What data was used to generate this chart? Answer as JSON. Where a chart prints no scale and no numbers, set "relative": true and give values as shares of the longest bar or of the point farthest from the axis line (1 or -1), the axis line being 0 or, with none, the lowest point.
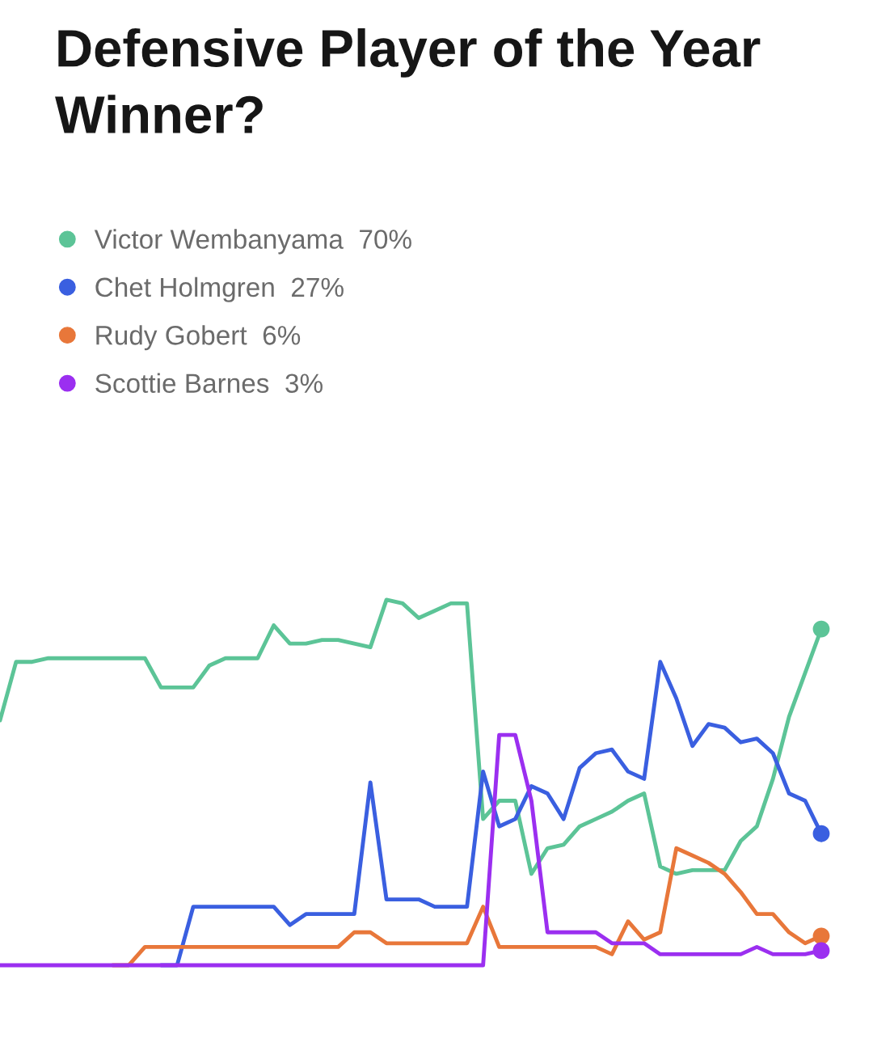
{
  "chart_data": {
    "type": "line",
    "title": "Defensive Player of the Year Winner?",
    "categories": [
      null,
      null,
      null,
      null,
      null,
      null,
      null,
      null,
      null,
      null,
      null,
      null,
      null,
      null,
      null,
      null,
      null,
      null,
      null,
      null,
      null,
      null,
      null,
      null,
      null,
      null,
      null,
      null,
      null,
      null,
      null,
      null,
      null,
      null,
      null,
      null,
      null,
      null,
      null,
      null,
      null,
      null,
      null,
      null,
      null,
      null,
      null,
      null,
      null,
      null,
      null,
      null
    ],
    "relative": true,
    "series": [
      {
        "name": "Victor Wembanyama  70%",
        "color": "#5cc497",
        "values": [
          0.67,
          0.83,
          0.83,
          0.84,
          0.84,
          0.84,
          0.84,
          0.84,
          0.84,
          0.84,
          0.76,
          0.76,
          0.76,
          0.82,
          0.84,
          0.84,
          0.84,
          0.93,
          0.88,
          0.88,
          0.89,
          0.89,
          0.88,
          0.87,
          1,
          0.99,
          0.95,
          0.97,
          0.99,
          0.99,
          0.4,
          0.45,
          0.45,
          0.25,
          0.32,
          0.33,
          0.38,
          0.4,
          0.42,
          0.45,
          0.47,
          0.27,
          0.25,
          0.26,
          0.26,
          0.26,
          0.34,
          0.38,
          0.51,
          0.68,
          0.8,
          0.92
        ]
      },
      {
        "name": "Chet Holmgren  27%",
        "color": "#3a5fe0",
        "values": [
          null,
          null,
          null,
          null,
          null,
          null,
          null,
          null,
          null,
          null,
          0,
          0,
          0.16,
          0.16,
          0.16,
          0.16,
          0.16,
          0.16,
          0.11,
          0.14,
          0.14,
          0.14,
          0.14,
          0.5,
          0.18,
          0.18,
          0.18,
          0.16,
          0.16,
          0.16,
          0.53,
          0.38,
          0.4,
          0.49,
          0.47,
          0.4,
          0.54,
          0.58,
          0.59,
          0.53,
          0.51,
          0.83,
          0.73,
          0.6,
          0.66,
          0.65,
          0.61,
          0.62,
          0.58,
          0.47,
          0.45,
          0.36
        ]
      },
      {
        "name": "Rudy Gobert  6%",
        "color": "#e8773a",
        "values": [
          null,
          null,
          null,
          null,
          null,
          null,
          null,
          0,
          0,
          0.05,
          0.05,
          0.05,
          0.05,
          0.05,
          0.05,
          0.05,
          0.05,
          0.05,
          0.05,
          0.05,
          0.05,
          0.05,
          0.09,
          0.09,
          0.06,
          0.06,
          0.06,
          0.06,
          0.06,
          0.06,
          0.16,
          0.05,
          0.05,
          0.05,
          0.05,
          0.05,
          0.05,
          0.05,
          0.03,
          0.12,
          0.07,
          0.09,
          0.32,
          0.3,
          0.28,
          0.25,
          0.2,
          0.14,
          0.14,
          0.09,
          0.06,
          0.08
        ]
      },
      {
        "name": "Scottie Barnes  3%",
        "color": "#9b2ff0",
        "values": [
          0,
          0,
          0,
          0,
          0,
          0,
          0,
          0,
          0,
          0,
          0,
          0,
          0,
          0,
          0,
          0,
          0,
          0,
          0,
          0,
          0,
          0,
          0,
          0,
          0,
          0,
          0,
          0,
          0,
          0,
          0,
          0.63,
          0.63,
          0.45,
          0.09,
          0.09,
          0.09,
          0.09,
          0.06,
          0.06,
          0.06,
          0.03,
          0.03,
          0.03,
          0.03,
          0.03,
          0.03,
          0.05,
          0.03,
          0.03,
          0.03,
          0.04
        ]
      }
    ],
    "legend": "top left",
    "line_style": "solid"
  }
}
